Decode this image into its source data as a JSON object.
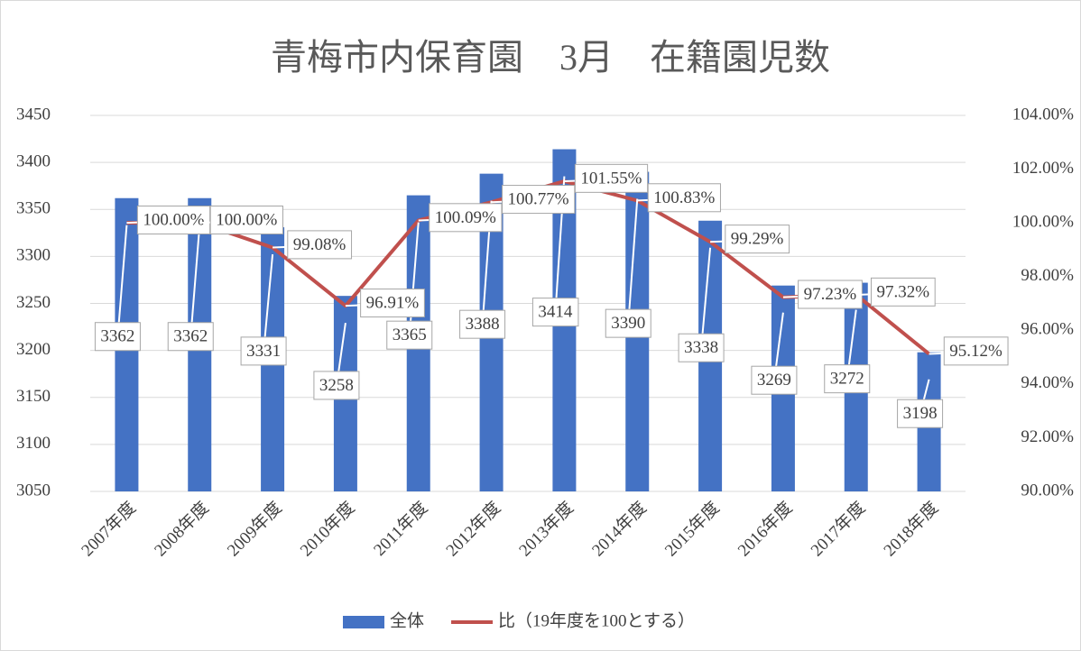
{
  "chart_data": {
    "type": "bar",
    "title": "青梅市内保育園　3月　在籍園児数",
    "categories": [
      "2007年度",
      "2008年度",
      "2009年度",
      "2010年度",
      "2011年度",
      "2012年度",
      "2013年度",
      "2014年度",
      "2015年度",
      "2016年度",
      "2017年度",
      "2018年度"
    ],
    "series": [
      {
        "name": "全体",
        "type": "bar",
        "color": "#4472c4",
        "values": [
          3362,
          3362,
          3331,
          3258,
          3365,
          3388,
          3414,
          3390,
          3338,
          3269,
          3272,
          3198
        ]
      },
      {
        "name": "比（19年度を100とする）",
        "type": "line",
        "axis": "y2",
        "color": "#c0504d",
        "values": [
          100.0,
          100.0,
          99.08,
          96.91,
          100.09,
          100.77,
          101.55,
          100.83,
          99.29,
          97.23,
          97.32,
          95.12
        ],
        "value_labels": [
          "100.00%",
          "100.00%",
          "99.08%",
          "96.91%",
          "100.09%",
          "100.77%",
          "101.55%",
          "100.83%",
          "99.29%",
          "97.23%",
          "97.32%",
          "95.12%"
        ]
      }
    ],
    "ylim": [
      3050,
      3450
    ],
    "yticks": [
      3050,
      3100,
      3150,
      3200,
      3250,
      3300,
      3350,
      3400,
      3450
    ],
    "y2lim": [
      90,
      104
    ],
    "y2ticks": [
      {
        "value": 90,
        "label": "90.00%"
      },
      {
        "value": 92,
        "label": "92.00%"
      },
      {
        "value": 94,
        "label": "94.00%"
      },
      {
        "value": 96,
        "label": "96.00%"
      },
      {
        "value": 98,
        "label": "98.00%"
      },
      {
        "value": 100,
        "label": "100.00%"
      },
      {
        "value": 102,
        "label": "102.00%"
      },
      {
        "value": 104,
        "label": "104.00%"
      }
    ],
    "grid": true,
    "legend": "bottom"
  }
}
